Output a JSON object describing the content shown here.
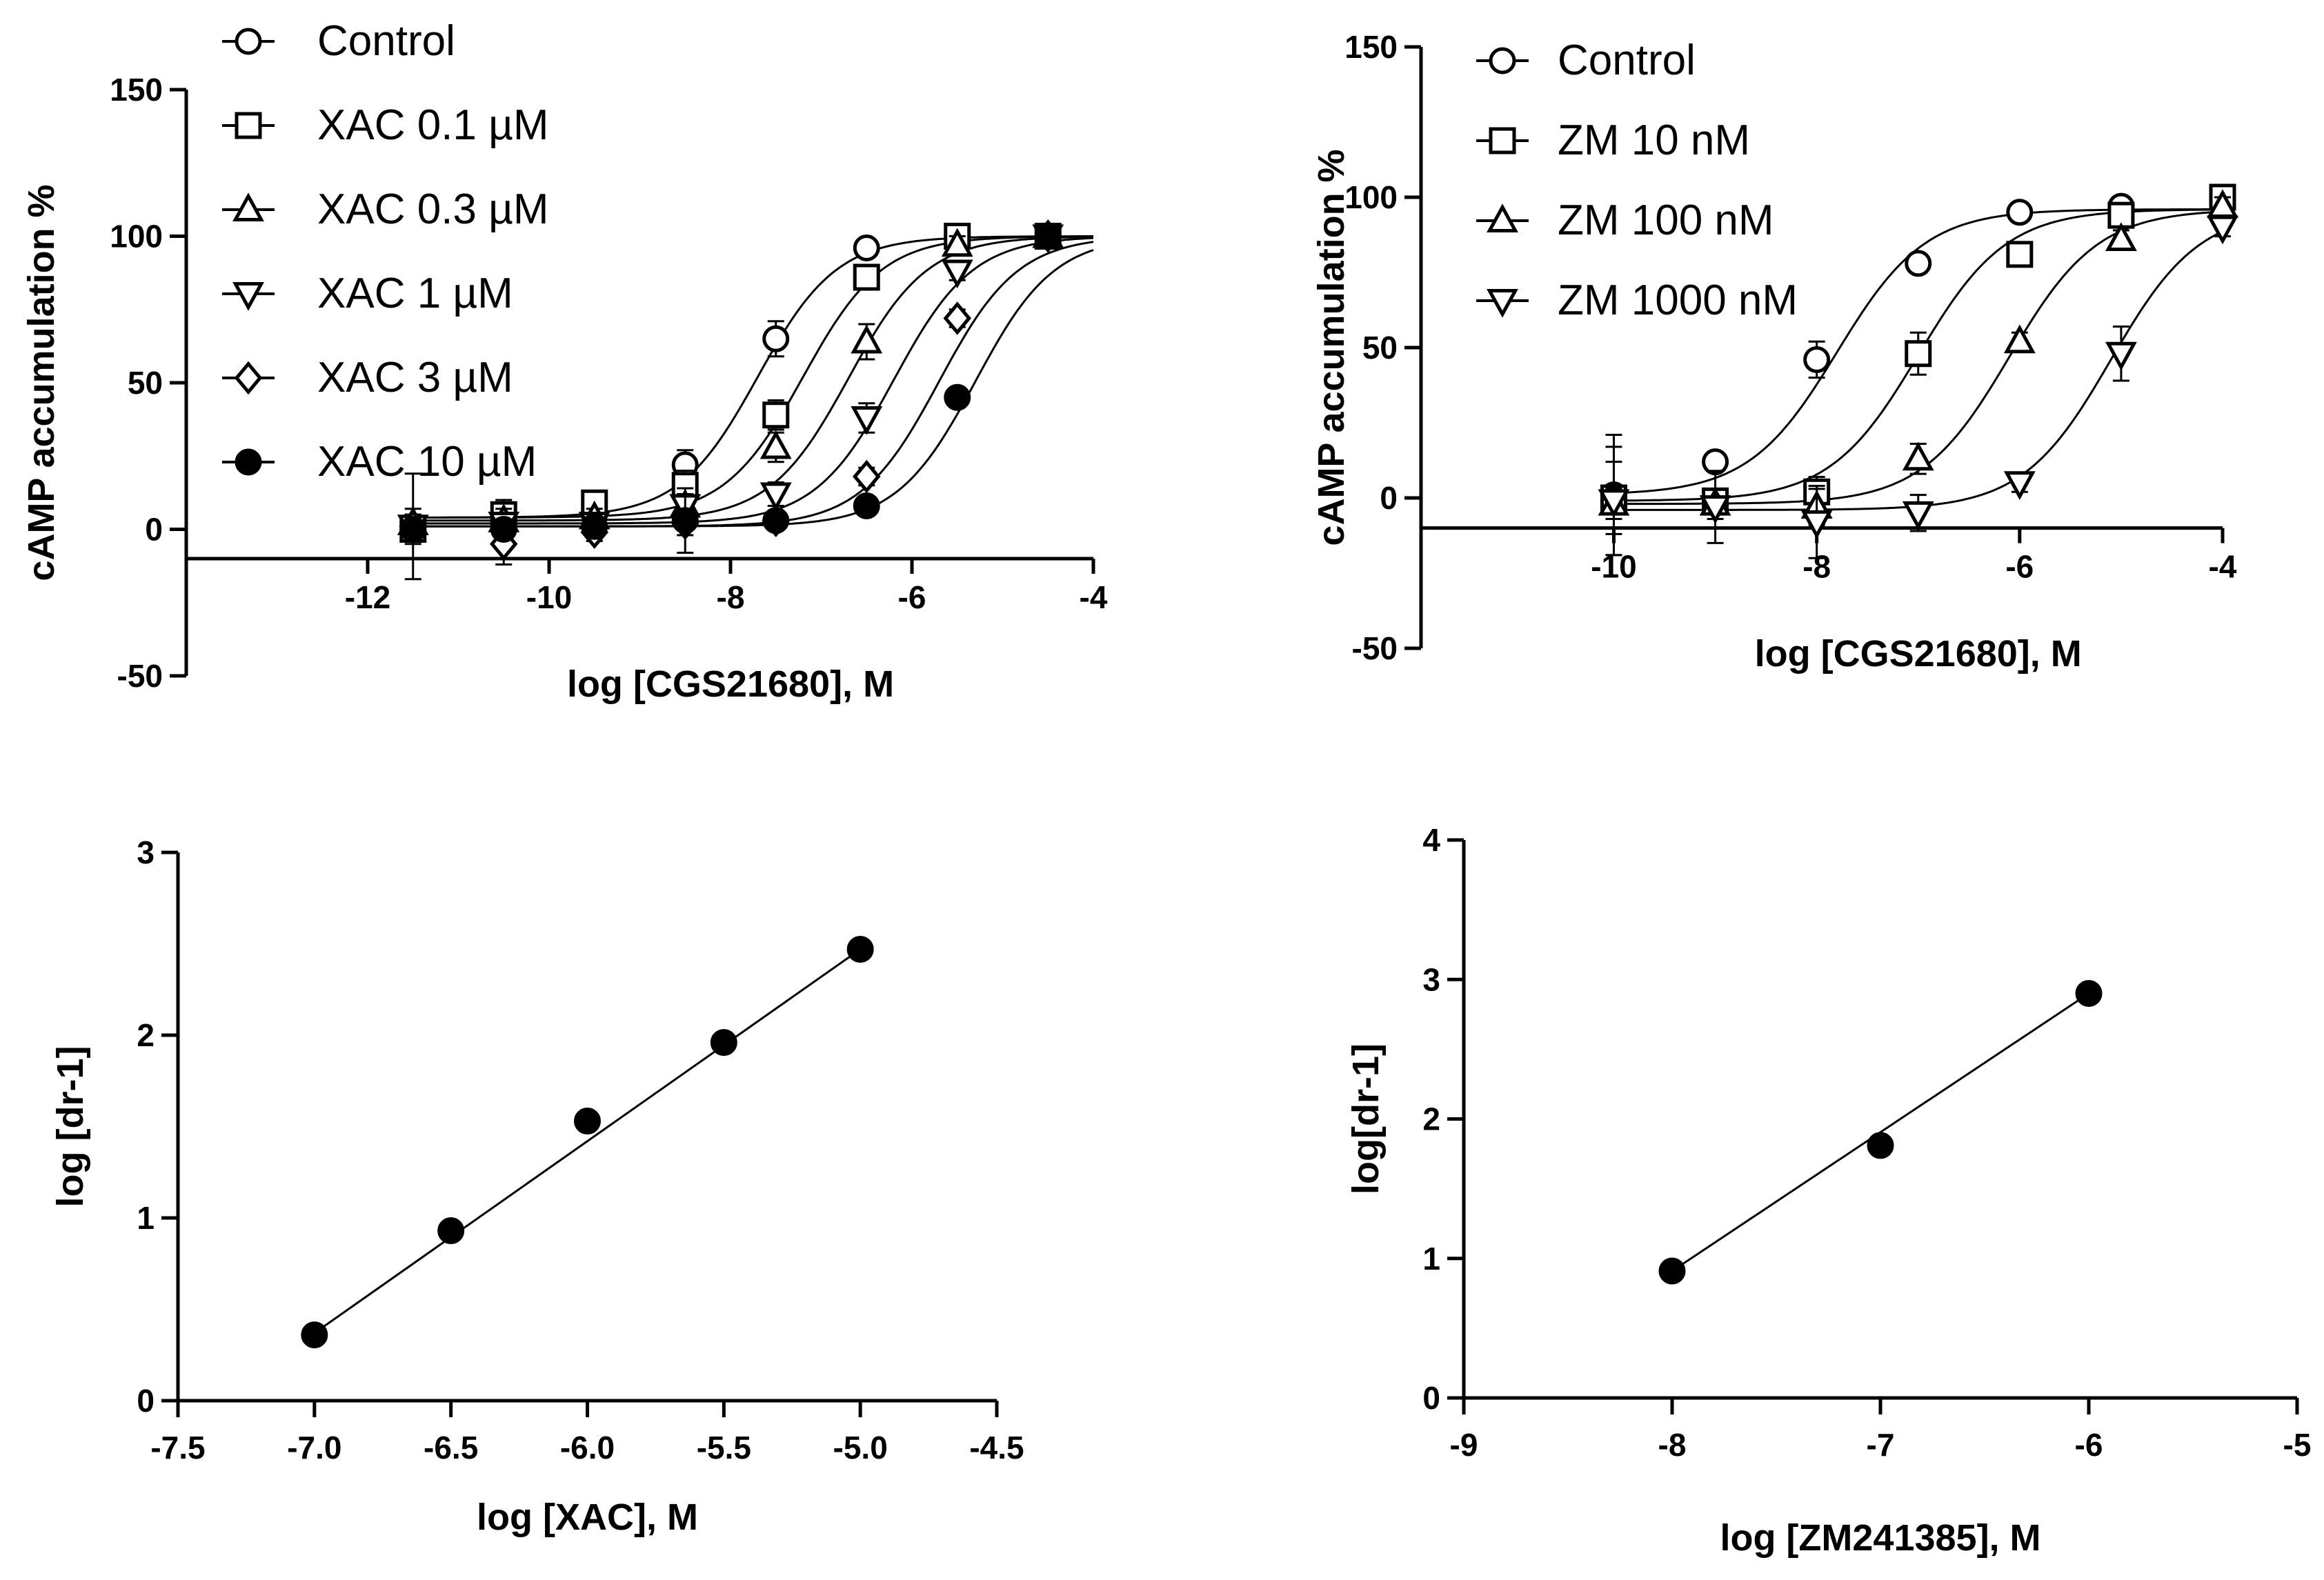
{
  "chart_data": [
    {
      "id": "A",
      "type": "line",
      "title": "",
      "xlabel": "log [CGS21680], M",
      "ylabel": "cAMP accumulation %",
      "xlim": [
        -14,
        -4
      ],
      "ylim": [
        -50,
        150
      ],
      "x_ticks": [
        -12,
        -10,
        -8,
        -6,
        -4
      ],
      "x_tick_labels": [
        "-12",
        "-10",
        "-8",
        "-6",
        "-4"
      ],
      "y_ticks": [
        -50,
        0,
        50,
        100,
        150
      ],
      "y_tick_labels": [
        "-50",
        "0",
        "50",
        "100",
        "150"
      ],
      "x_axis_at_y": -10,
      "legend_position": "top-left",
      "series": [
        {
          "name": "Control",
          "marker": "circle-open",
          "ec50": -7.7,
          "bottom": 4,
          "top": 100,
          "x": [
            -11.5,
            -10.5,
            -9.5,
            -8.5,
            -7.5,
            -6.5,
            -5.5,
            -4.5
          ],
          "y": [
            1,
            4,
            5,
            22,
            65,
            96,
            100,
            100
          ],
          "err": [
            18,
            6,
            4,
            5,
            6,
            2,
            2,
            2
          ]
        },
        {
          "name": "XAC 0.1 µM",
          "marker": "square-open",
          "ec50": -7.2,
          "bottom": 4,
          "top": 100,
          "x": [
            -11.5,
            -10.5,
            -9.5,
            -8.5,
            -7.5,
            -6.5,
            -5.5,
            -4.5
          ],
          "y": [
            0,
            5,
            9,
            15,
            39,
            86,
            100,
            100
          ],
          "err": [
            5,
            4,
            3,
            5,
            5,
            3,
            2,
            2
          ]
        },
        {
          "name": "XAC 0.3 µM",
          "marker": "triangle-up-open",
          "ec50": -6.7,
          "bottom": 3,
          "top": 100,
          "x": [
            -11.5,
            -10.5,
            -9.5,
            -8.5,
            -7.5,
            -6.5,
            -5.5,
            -4.5
          ],
          "y": [
            2,
            3,
            4,
            8,
            28,
            64,
            97,
            100
          ],
          "err": [
            5,
            4,
            3,
            4,
            5,
            6,
            3,
            2
          ]
        },
        {
          "name": "XAC 1 µM",
          "marker": "triangle-down-open",
          "ec50": -6.2,
          "bottom": 2,
          "top": 100,
          "x": [
            -11.5,
            -10.5,
            -9.5,
            -8.5,
            -7.5,
            -6.5,
            -5.5,
            -4.5
          ],
          "y": [
            1,
            2,
            2,
            8,
            12,
            38,
            88,
            100
          ],
          "err": [
            4,
            3,
            3,
            4,
            4,
            5,
            3,
            2
          ]
        },
        {
          "name": "XAC 3 µM",
          "marker": "diamond-open",
          "ec50": -5.7,
          "bottom": 1,
          "top": 100,
          "x": [
            -11.5,
            -10.5,
            -9.5,
            -8.5,
            -7.5,
            -6.5,
            -5.5,
            -4.5
          ],
          "y": [
            1,
            -5,
            -1,
            2,
            3,
            18,
            72,
            100
          ],
          "err": [
            4,
            7,
            3,
            4,
            3,
            3,
            3,
            2
          ]
        },
        {
          "name": "XAC 10 µM",
          "marker": "circle-filled",
          "ec50": -5.3,
          "bottom": 1,
          "top": 100,
          "x": [
            -11.5,
            -10.5,
            -9.5,
            -8.5,
            -7.5,
            -6.5,
            -5.5,
            -4.5
          ],
          "y": [
            0,
            0,
            1,
            3,
            3,
            8,
            45,
            100
          ],
          "err": [
            4,
            3,
            2,
            11,
            2,
            2,
            2,
            2
          ]
        }
      ],
      "legend_labels": [
        "Control",
        "XAC 0.1 µM",
        "XAC 0.3 µM",
        "XAC 1 µM",
        "XAC 3 µM",
        "XAC 10 µM"
      ]
    },
    {
      "id": "B",
      "type": "line",
      "title": "",
      "xlabel": "log [CGS21680], M",
      "ylabel": "cAMP accumulation %",
      "xlim": [
        -11.9,
        -4
      ],
      "ylim": [
        -50,
        150
      ],
      "x_ticks": [
        -10,
        -8,
        -6,
        -4
      ],
      "x_tick_labels": [
        "-10",
        "-8",
        "-6",
        "-4"
      ],
      "y_ticks": [
        -50,
        0,
        50,
        100,
        150
      ],
      "y_tick_labels": [
        "-50",
        "0",
        "50",
        "100",
        "150"
      ],
      "x_axis_at_y": -10,
      "legend_position": "top-left",
      "series": [
        {
          "name": "Control",
          "marker": "circle-open",
          "ec50": -7.8,
          "bottom": 1,
          "top": 96,
          "x": [
            -10,
            -9,
            -8,
            -7,
            -6,
            -5,
            -4
          ],
          "y": [
            1,
            12,
            46,
            78,
            95,
            97,
            99
          ],
          "err": [
            20,
            3,
            6,
            3,
            2,
            2,
            2
          ]
        },
        {
          "name": "ZM 10 nM",
          "marker": "square-open",
          "ec50": -7.0,
          "bottom": -1,
          "top": 96,
          "x": [
            -10,
            -9,
            -8,
            -7,
            -6,
            -5,
            -4
          ],
          "y": [
            0,
            -1,
            2,
            48,
            81,
            94,
            100
          ],
          "err": [
            12,
            4,
            5,
            7,
            3,
            3,
            2
          ]
        },
        {
          "name": "ZM 100 nM",
          "marker": "triangle-up-open",
          "ec50": -6.1,
          "bottom": -2,
          "top": 96,
          "x": [
            -10,
            -9,
            -8,
            -7,
            -6,
            -5,
            -4
          ],
          "y": [
            -2,
            -2,
            -3,
            13,
            52,
            86,
            97
          ],
          "err": [
            5,
            5,
            6,
            5,
            3,
            3,
            3
          ]
        },
        {
          "name": "ZM 1000 nM",
          "marker": "triangle-down-open",
          "ec50": -5.1,
          "bottom": -4,
          "top": 96,
          "x": [
            -10,
            -9,
            -8,
            -7,
            -6,
            -5,
            -4
          ],
          "y": [
            -1,
            -3,
            -8,
            -5,
            5,
            48,
            90
          ],
          "err": [
            18,
            12,
            12,
            6,
            3,
            9,
            3
          ]
        }
      ],
      "legend_labels": [
        "Control",
        "ZM 10 nM",
        "ZM 100 nM",
        "ZM 1000 nM"
      ]
    },
    {
      "id": "C",
      "type": "scatter",
      "title": "",
      "xlabel": "log [XAC], M",
      "ylabel": "log [dr-1]",
      "xlim": [
        -7.5,
        -4.5
      ],
      "ylim": [
        0,
        3
      ],
      "x_ticks": [
        -7.5,
        -7.0,
        -6.5,
        -6.0,
        -5.5,
        -5.0,
        -4.5
      ],
      "x_tick_labels": [
        "-7.5",
        "-7.0",
        "-6.5",
        "-6.0",
        "-5.5",
        "-5.0",
        "-4.5"
      ],
      "y_ticks": [
        0,
        1,
        2,
        3
      ],
      "y_tick_labels": [
        "0",
        "1",
        "2",
        "3"
      ],
      "x": [
        -7.0,
        -6.5,
        -6.0,
        -5.5,
        -5.0
      ],
      "y": [
        0.36,
        0.93,
        1.53,
        1.96,
        2.47
      ],
      "fit_line": {
        "x": [
          -7.0,
          -5.0
        ],
        "y": [
          0.37,
          2.47
        ]
      }
    },
    {
      "id": "D",
      "type": "scatter",
      "title": "",
      "xlabel": "log [ZM241385], M",
      "ylabel": "log[dr-1]",
      "xlim": [
        -9,
        -5
      ],
      "ylim": [
        0,
        4
      ],
      "x_ticks": [
        -9,
        -8,
        -7,
        -6,
        -5
      ],
      "x_tick_labels": [
        "-9",
        "-8",
        "-7",
        "-6",
        "-5"
      ],
      "y_ticks": [
        0,
        1,
        2,
        3,
        4
      ],
      "y_tick_labels": [
        "0",
        "1",
        "2",
        "3",
        "4"
      ],
      "x": [
        -8,
        -7,
        -6
      ],
      "y": [
        0.91,
        1.81,
        2.9
      ],
      "fit_line": {
        "x": [
          -8,
          -6
        ],
        "y": [
          0.91,
          2.9
        ]
      }
    }
  ]
}
